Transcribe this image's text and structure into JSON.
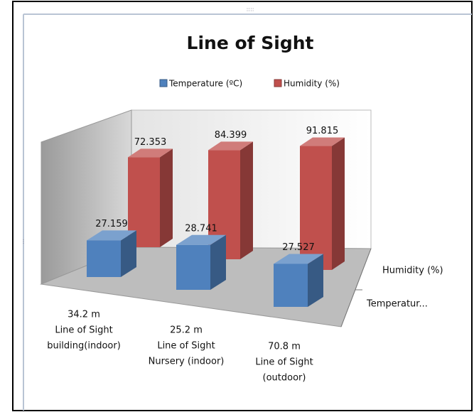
{
  "chart_data": {
    "type": "bar3d",
    "title": "Line of Sight",
    "categories": [
      [
        "34.2 m",
        "Line of Sight",
        "building(indoor)"
      ],
      [
        "25.2 m",
        "Line of Sight",
        "Nursery (indoor)"
      ],
      [
        "70.8 m",
        "Line of Sight",
        "(outdoor)"
      ]
    ],
    "series": [
      {
        "name": "Temperature (ºC)",
        "color": "#4f81bd",
        "values": [
          27.159,
          28.741,
          27.527
        ]
      },
      {
        "name": "Humidity (%)",
        "color": "#c0504d",
        "values": [
          72.353,
          84.399,
          91.815
        ]
      }
    ],
    "depth_labels": [
      "Humidity (%)",
      "Temperatur..."
    ],
    "ylim": [
      0,
      100
    ],
    "legend": "top"
  }
}
